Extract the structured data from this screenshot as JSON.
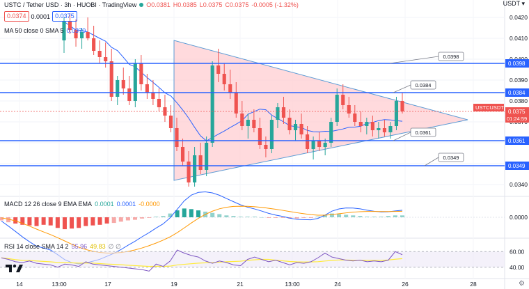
{
  "header": {
    "symbol_title": "USTC / Tether USD · 3h · HUOBI · TradingView",
    "bid_price": "0.0374",
    "spread": "0.0001",
    "ask_price": "0.0375",
    "open": "O0.0381",
    "high": "H0.0385",
    "low": "L0.0375",
    "close": "C0.0375",
    "change": "-0.0005 (-1.32%)"
  },
  "currency": "USDT",
  "ma_legend": {
    "text": "MA 50 close 0 SMA 5",
    "value": "0.0370"
  },
  "macd_legend": {
    "text": "MACD 12 26 close 9 EMA EMA",
    "v1": "0.0001",
    "v2": "0.0001",
    "v3": "-0.0000"
  },
  "rsi_legend": {
    "text": "RSI 14 close SMA 14 2",
    "v1": "55.96",
    "v2": "49.83",
    "v3": "∅ ∅"
  },
  "price_axis": {
    "ticks": [
      "0.0420",
      "0.0410",
      "0.0400",
      "0.0390",
      "0.0380",
      "0.0370",
      "0.0360",
      "0.0350",
      "0.0340"
    ],
    "labels": [
      {
        "text": "0.0398",
        "style": "blue"
      },
      {
        "text": "0.0384",
        "style": "blue"
      },
      {
        "text": "USTCUSDT",
        "style": "red"
      },
      {
        "text": "0.0375",
        "style": "red"
      },
      {
        "text": "01:24:59",
        "style": "red"
      },
      {
        "text": "0.0361",
        "style": "blue"
      },
      {
        "text": "0.0349",
        "style": "blue"
      }
    ]
  },
  "macd_axis": {
    "zero_label": "0.0000"
  },
  "rsi_axis": {
    "upper": "60.00",
    "lower": "40.00"
  },
  "time_axis": [
    "14",
    "13:00",
    "17",
    "19",
    "21",
    "13:00",
    "24",
    "26",
    "28"
  ],
  "annotations": [
    {
      "text": "0.0398"
    },
    {
      "text": "0.0384"
    },
    {
      "text": "0.0361"
    },
    {
      "text": "0.0349"
    }
  ],
  "colors": {
    "up": "#26a69a",
    "down": "#ef5350",
    "level_line": "#2962ff",
    "triangle_fill": "#ffcdd2",
    "ma_line": "#2962ff",
    "macd_line": "#2962ff",
    "signal_line": "#ff9800",
    "rsi_line": "#7e57c2",
    "rsi_ma": "#ffeb3b"
  },
  "chart_data": {
    "type": "candlestick",
    "interval": "3h",
    "y_range": [
      0.0335,
      0.0425
    ],
    "horizontal_levels": [
      0.0398,
      0.0384,
      0.0361,
      0.0349
    ],
    "candles": [
      [
        0.0409,
        0.042,
        0.0403,
        0.0418
      ],
      [
        0.0418,
        0.0422,
        0.0412,
        0.0414
      ],
      [
        0.0414,
        0.0419,
        0.0406,
        0.041
      ],
      [
        0.041,
        0.0415,
        0.0405,
        0.0413
      ],
      [
        0.0413,
        0.042,
        0.0409,
        0.041
      ],
      [
        0.041,
        0.0416,
        0.0402,
        0.0404
      ],
      [
        0.0404,
        0.0409,
        0.0398,
        0.0401
      ],
      [
        0.0401,
        0.0408,
        0.0396,
        0.0399
      ],
      [
        0.0399,
        0.0405,
        0.038,
        0.0382
      ],
      [
        0.0382,
        0.0392,
        0.0378,
        0.039
      ],
      [
        0.039,
        0.0396,
        0.0383,
        0.0386
      ],
      [
        0.0386,
        0.0392,
        0.0378,
        0.038
      ],
      [
        0.038,
        0.04,
        0.0377,
        0.0398
      ],
      [
        0.0398,
        0.0402,
        0.0385,
        0.0388
      ],
      [
        0.0388,
        0.0393,
        0.0381,
        0.0384
      ],
      [
        0.0384,
        0.039,
        0.0378,
        0.0381
      ],
      [
        0.0381,
        0.0386,
        0.0375,
        0.0377
      ],
      [
        0.0377,
        0.0383,
        0.037,
        0.0373
      ],
      [
        0.0373,
        0.0378,
        0.0365,
        0.0367
      ],
      [
        0.0367,
        0.0372,
        0.0356,
        0.0358
      ],
      [
        0.0358,
        0.0362,
        0.0349,
        0.0351
      ],
      [
        0.0351,
        0.0356,
        0.0339,
        0.0341
      ],
      [
        0.0341,
        0.0358,
        0.0339,
        0.0354
      ],
      [
        0.0354,
        0.036,
        0.0345,
        0.0347
      ],
      [
        0.0347,
        0.0363,
        0.0344,
        0.036
      ],
      [
        0.036,
        0.0399,
        0.0358,
        0.0397
      ],
      [
        0.0397,
        0.0405,
        0.0389,
        0.0393
      ],
      [
        0.0393,
        0.0398,
        0.0385,
        0.0388
      ],
      [
        0.0388,
        0.0395,
        0.0381,
        0.0384
      ],
      [
        0.0384,
        0.0389,
        0.0372,
        0.0374
      ],
      [
        0.0374,
        0.038,
        0.0366,
        0.0368
      ],
      [
        0.0368,
        0.0374,
        0.0362,
        0.0371
      ],
      [
        0.0371,
        0.0376,
        0.0365,
        0.0367
      ],
      [
        0.0367,
        0.0372,
        0.0357,
        0.0359
      ],
      [
        0.0359,
        0.0363,
        0.0353,
        0.0357
      ],
      [
        0.0357,
        0.0373,
        0.0355,
        0.0371
      ],
      [
        0.0371,
        0.0379,
        0.0367,
        0.0377
      ],
      [
        0.0377,
        0.0382,
        0.0369,
        0.0372
      ],
      [
        0.0372,
        0.0376,
        0.0364,
        0.0366
      ],
      [
        0.0366,
        0.0371,
        0.0361,
        0.0369
      ],
      [
        0.0369,
        0.0374,
        0.0362,
        0.0364
      ],
      [
        0.0364,
        0.0368,
        0.0355,
        0.0357
      ],
      [
        0.0357,
        0.0363,
        0.0352,
        0.0361
      ],
      [
        0.0361,
        0.0365,
        0.0356,
        0.0358
      ],
      [
        0.0358,
        0.0362,
        0.0354,
        0.036
      ],
      [
        0.036,
        0.0372,
        0.0358,
        0.037
      ],
      [
        0.037,
        0.0386,
        0.0368,
        0.0383
      ],
      [
        0.0383,
        0.0388,
        0.0376,
        0.0378
      ],
      [
        0.0378,
        0.0382,
        0.0372,
        0.0374
      ],
      [
        0.0374,
        0.0378,
        0.0368,
        0.037
      ],
      [
        0.037,
        0.0375,
        0.0365,
        0.0368
      ],
      [
        0.0368,
        0.0372,
        0.0364,
        0.037
      ],
      [
        0.037,
        0.0373,
        0.0363,
        0.0366
      ],
      [
        0.0366,
        0.037,
        0.0362,
        0.0367
      ],
      [
        0.0367,
        0.0371,
        0.0363,
        0.0365
      ],
      [
        0.0365,
        0.037,
        0.0362,
        0.0368
      ],
      [
        0.0368,
        0.0382,
        0.0366,
        0.038
      ],
      [
        0.038,
        0.0384,
        0.0374,
        0.0375
      ]
    ],
    "macd_histogram": [
      -5e-05,
      -8e-05,
      -0.0001,
      -0.00012,
      -0.00013,
      -0.00014,
      -0.00012,
      -0.00013,
      -0.00017,
      -0.00019,
      -0.00018,
      -0.00017,
      -0.00014,
      -0.00013,
      -0.00012,
      -0.0001,
      -9e-05,
      -7e-05,
      -5e-05,
      -4e-05,
      -2e-05,
      -1e-05,
      1e-05,
      2e-05,
      6e-05,
      0.00011,
      0.00014,
      0.00013,
      0.00011,
      9e-05,
      7e-05,
      5e-05,
      3e-05,
      2e-05,
      1e-05,
      1e-05,
      1e-05,
      0.0,
      -1e-05,
      -1e-05,
      -1e-05,
      -2e-05,
      -2e-05,
      -1e-05,
      -1e-05,
      1e-05,
      4e-05,
      6e-05,
      5e-05,
      4e-05,
      3e-05,
      2e-05,
      1e-05,
      1e-05,
      1e-05,
      2e-05,
      3e-05,
      3e-05
    ],
    "rsi": [
      52,
      50,
      47,
      46,
      48,
      45,
      44,
      43,
      40,
      44,
      43,
      41,
      47,
      44,
      43,
      42,
      41,
      40,
      39,
      38,
      37,
      35,
      44,
      41,
      48,
      62,
      58,
      55,
      53,
      48,
      45,
      48,
      46,
      43,
      42,
      50,
      53,
      50,
      47,
      49,
      46,
      43,
      46,
      45,
      47,
      52,
      58,
      53,
      51,
      49,
      48,
      49,
      47,
      48,
      47,
      49,
      60,
      56
    ]
  }
}
